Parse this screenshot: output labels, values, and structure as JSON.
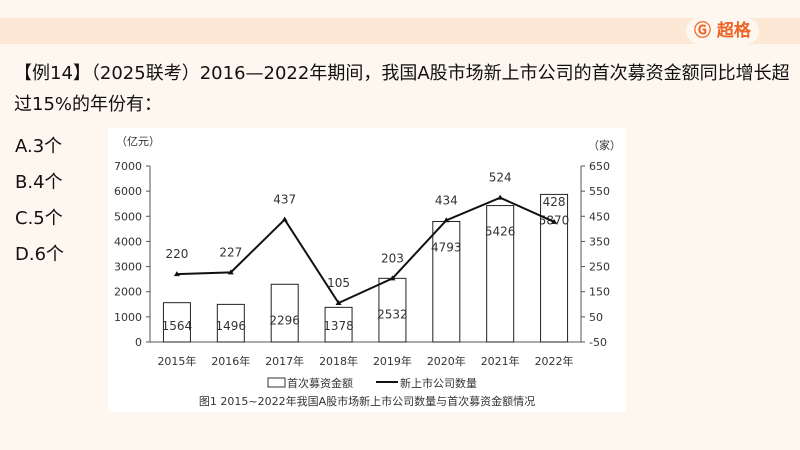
{
  "brand": {
    "name": "超格",
    "color": "#ee6428"
  },
  "question": "【例14】（2025联考）2016—2022年期间，我国A股市场新上市公司的首次募资金额同比增长超过15%的年份有：",
  "options": [
    "A.3个",
    "B.4个",
    "C.5个",
    "D.6个"
  ],
  "chart_data": {
    "type": "bar+line",
    "title": "图1  2015~2022年我国A股市场新上市公司数量与首次募资金额情况",
    "categories": [
      "2015年",
      "2016年",
      "2017年",
      "2018年",
      "2019年",
      "2020年",
      "2021年",
      "2022年"
    ],
    "left_axis": {
      "label": "（亿元）",
      "range": [
        0,
        7000
      ],
      "ticks": [
        0,
        1000,
        2000,
        3000,
        4000,
        5000,
        6000,
        7000
      ]
    },
    "right_axis": {
      "label": "（家）",
      "range": [
        -50,
        650
      ],
      "ticks": [
        -50,
        50,
        150,
        250,
        350,
        450,
        550,
        650
      ]
    },
    "series": [
      {
        "name": "首次募资金额",
        "type": "bar",
        "axis": "left",
        "values": [
          1564,
          1496,
          2296,
          1378,
          2532,
          4793,
          5426,
          5870
        ]
      },
      {
        "name": "新上市公司数量",
        "type": "line",
        "axis": "right",
        "values": [
          220,
          227,
          437,
          105,
          203,
          434,
          524,
          428
        ]
      }
    ],
    "legend": "bottom",
    "grid": false
  }
}
